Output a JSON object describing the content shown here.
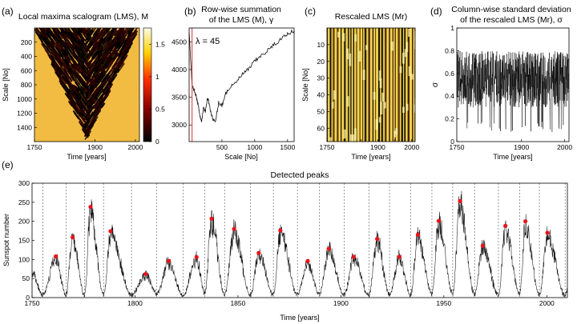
{
  "chart_data": [
    {
      "id": "a",
      "panel_label": "(a)",
      "type": "heatmap",
      "title": "Local maxima scalogram (LMS), M",
      "xlabel": "Time [years]",
      "ylabel": "Scale [No]",
      "xlim": [
        1750,
        2010
      ],
      "ylim": [
        1600,
        0
      ],
      "x_ticks": [
        1750,
        1900,
        2000
      ],
      "y_ticks": [
        200,
        400,
        600,
        800,
        1000,
        1200,
        1400
      ],
      "colorbar": {
        "range": [
          0,
          1.75
        ],
        "ticks": [
          0,
          0.5,
          1,
          1.5
        ],
        "tick_labels": [
          "0",
          "0.5",
          "1",
          "1.5"
        ],
        "colors": [
          "#000000",
          "#8b0000",
          "#ff3000",
          "#ffd000",
          "#fffbe6"
        ]
      },
      "notes": "Black maxima pattern forms a triangle narrowing to scale ~1550 at year ~1880; background ~1.4"
    },
    {
      "id": "b",
      "panel_label": "(b)",
      "type": "line",
      "title": "Row-wise summation",
      "subtitle": "of the LMS (M), γ",
      "xlabel": "Scale [No]",
      "ylabel": "",
      "xlim": [
        0,
        1600
      ],
      "ylim": [
        2700,
        4750
      ],
      "x_ticks": [
        500,
        1000,
        1500
      ],
      "y_ticks": [
        3000,
        3500,
        4000,
        4500
      ],
      "annotation": "λ = 45",
      "vline_x": 45,
      "series": [
        {
          "name": "γ",
          "x": [
            0,
            45,
            70,
            100,
            130,
            160,
            190,
            220,
            250,
            280,
            320,
            360,
            400,
            450,
            500,
            550,
            600,
            700,
            800,
            900,
            1000,
            1100,
            1200,
            1300,
            1400,
            1500,
            1600
          ],
          "values": [
            4700,
            3700,
            3650,
            3550,
            3400,
            3200,
            3050,
            3300,
            3250,
            3500,
            3300,
            3100,
            3050,
            3400,
            3350,
            3550,
            3650,
            3750,
            3900,
            4000,
            4150,
            4250,
            4350,
            4450,
            4550,
            4650,
            4700
          ]
        }
      ]
    },
    {
      "id": "c",
      "panel_label": "(c)",
      "type": "heatmap",
      "title": "Rescaled LMS (Mr)",
      "xlabel": "Time [years]",
      "ylabel": "Scale [No]",
      "xlim": [
        1750,
        2010
      ],
      "ylim": [
        68,
        0
      ],
      "x_ticks": [
        1750,
        1800,
        1850,
        1900,
        1950,
        2000
      ],
      "x_tick_labels": [
        "1750",
        "",
        "",
        "1900",
        "",
        "2000"
      ],
      "y_ticks": [
        10,
        20,
        30,
        40,
        50,
        60
      ],
      "notes": "Dense vertical black/yellow striping"
    },
    {
      "id": "d",
      "panel_label": "(d)",
      "type": "line",
      "title": "Column-wise standard deviation",
      "subtitle": "of the rescaled LMS (Mr), σ",
      "xlabel": "Time [years]",
      "ylabel": "σ",
      "xlim": [
        1750,
        2010
      ],
      "ylim": [
        0,
        1
      ],
      "x_ticks": [
        1750,
        1900,
        2000
      ],
      "y_ticks": [
        0,
        0.2,
        0.4,
        0.6,
        0.8,
        1
      ],
      "notes": "Oscillating band mostly between 0.3 and 0.8 with dips to ~0.1"
    },
    {
      "id": "e",
      "panel_label": "(e)",
      "type": "line",
      "title": "Detected peaks",
      "xlabel": "Time [years]",
      "ylabel": "Sunspot number",
      "xlim": [
        1750,
        2010
      ],
      "ylim": [
        0,
        300
      ],
      "x_ticks": [
        1750,
        1800,
        1850,
        1900,
        1950,
        2000
      ],
      "y_ticks": [
        0,
        50,
        100,
        150,
        200,
        250,
        300
      ],
      "peaks": {
        "x": [
          1761.5,
          1769.7,
          1778.4,
          1788.1,
          1805.2,
          1816.4,
          1829.9,
          1837.2,
          1848.1,
          1860.1,
          1870.6,
          1883.9,
          1894.1,
          1906.2,
          1917.6,
          1928.4,
          1937.4,
          1947.5,
          1957.9,
          1968.9,
          1979.9,
          1989.6,
          2000.3
        ],
        "y": [
          108,
          158,
          238,
          174,
          62,
          96,
          106,
          207,
          180,
          117,
          176,
          96,
          128,
          107,
          154,
          107,
          165,
          201,
          253,
          136,
          188,
          200,
          170
        ]
      },
      "minima_x": [
        1755.2,
        1766.5,
        1775.5,
        1784.7,
        1798.3,
        1810.6,
        1823.3,
        1833.9,
        1843.5,
        1856.0,
        1867.2,
        1878.9,
        1889.6,
        1901.7,
        1913.6,
        1923.6,
        1933.8,
        1944.2,
        1954.3,
        1964.9,
        1976.5,
        1986.8,
        1996.4,
        2008.9
      ]
    }
  ]
}
